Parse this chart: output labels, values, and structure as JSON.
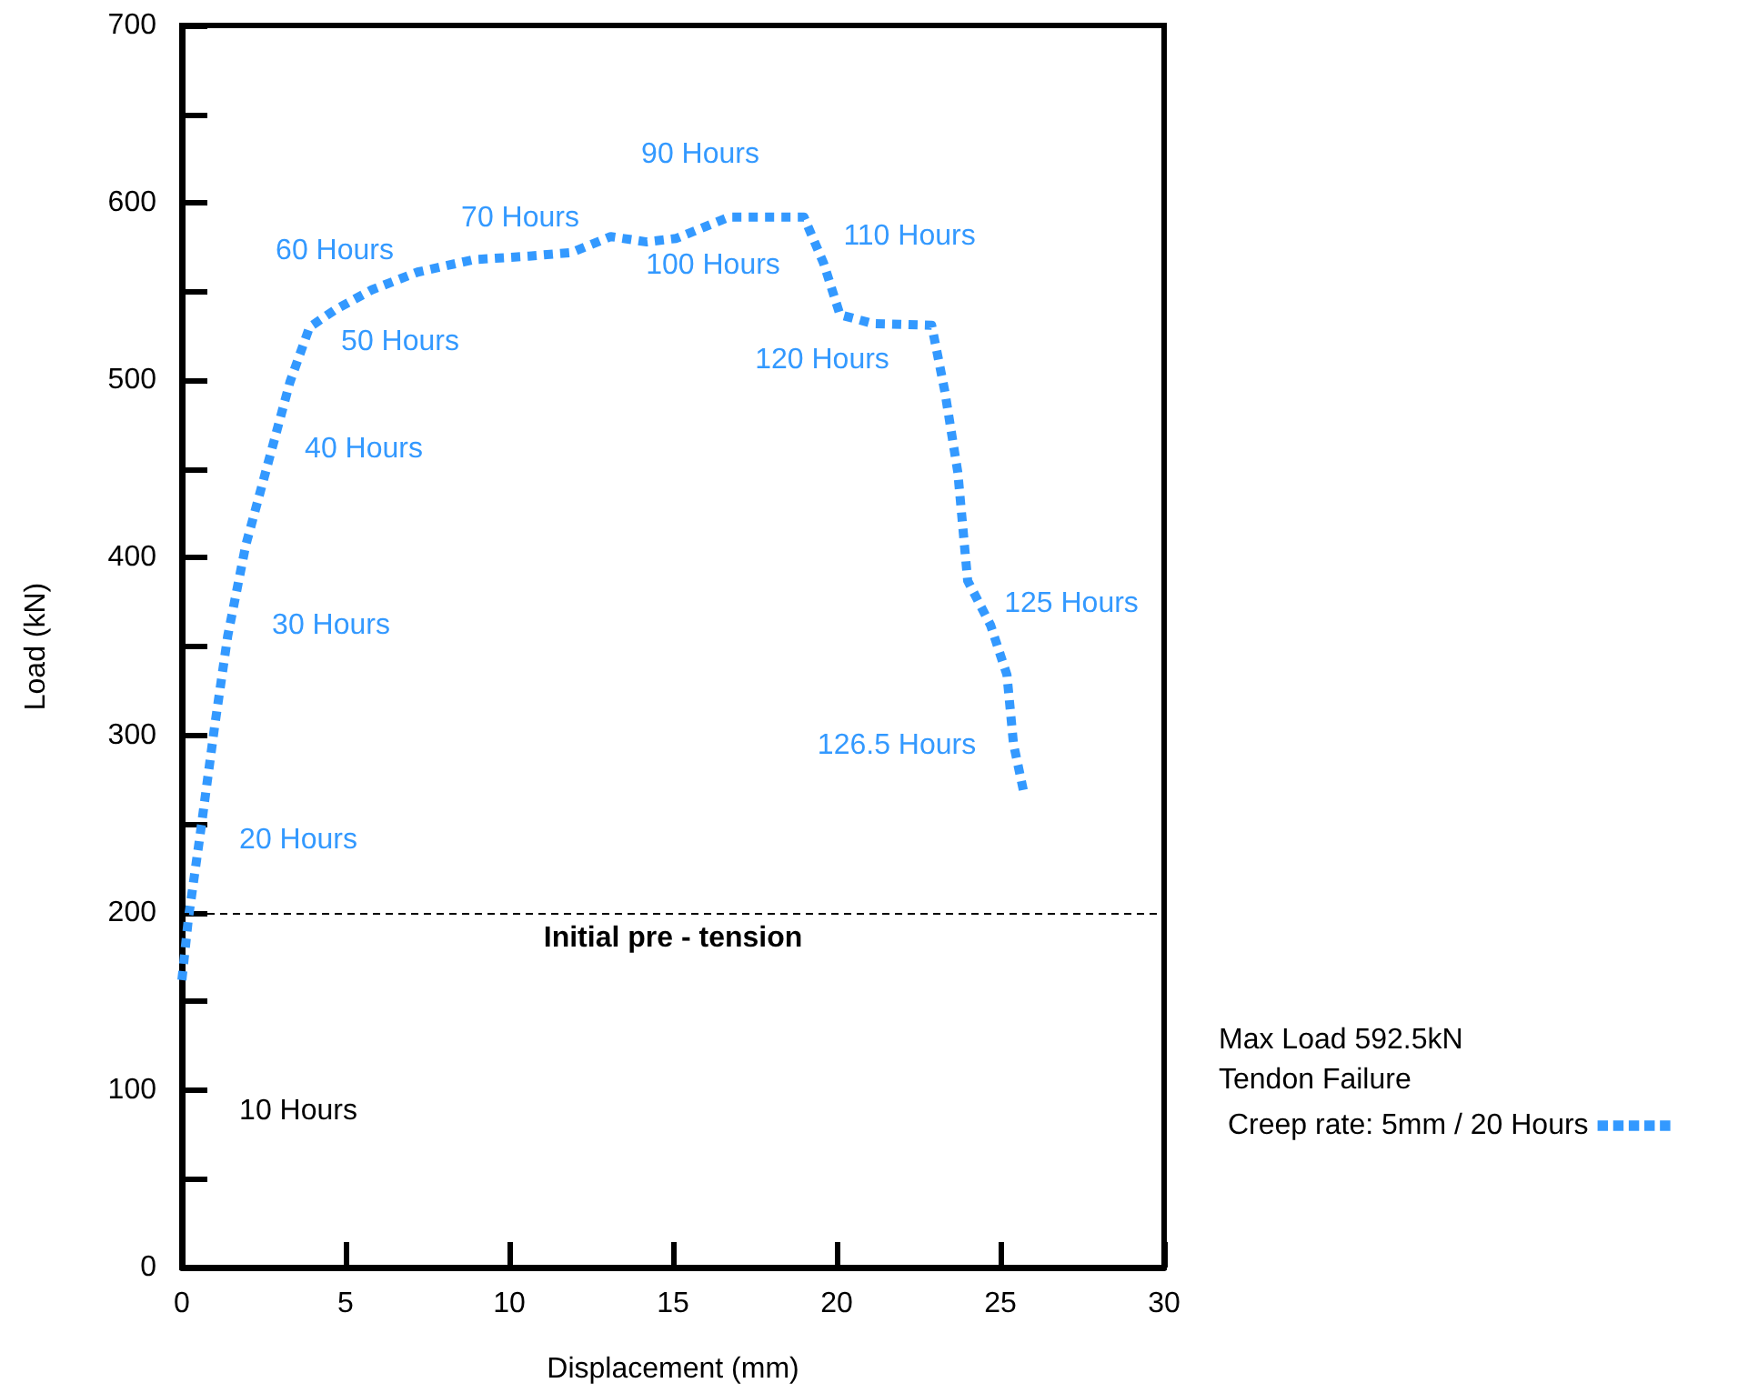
{
  "chart_data": {
    "type": "line",
    "xlabel": "Displacement (mm)",
    "ylabel": "Load (kN)",
    "x": [
      0,
      0.2,
      0.55,
      1.0,
      1.4,
      1.95,
      2.7,
      3.3,
      3.9,
      4.7,
      5.8,
      7.2,
      8.9,
      10.6,
      11.9,
      13.1,
      14.2,
      15.1,
      16.7,
      18.0,
      19.0,
      19.6,
      20.1,
      21.1,
      22.9,
      23.3,
      23.7,
      24.0,
      24.7,
      25.2,
      25.4,
      25.7
    ],
    "series": [
      {
        "name": "Creep rate: 5mm / 20 Hours",
        "color": "#3399ff",
        "values": [
          162,
          197,
          243,
          305,
          356,
          407,
          458,
          499,
          530,
          540,
          551,
          561,
          568,
          570,
          572,
          581,
          578,
          580,
          592,
          592,
          592,
          566,
          537,
          532,
          531,
          494,
          448,
          387,
          362,
          334,
          295,
          269
        ]
      }
    ],
    "line_style": "dotted",
    "marker": "none",
    "grid": false,
    "legend": "right",
    "xlim": [
      0,
      30
    ],
    "xticks": [
      0,
      5,
      10,
      15,
      20,
      25,
      30
    ],
    "ylim": [
      0,
      700
    ],
    "yticks": [
      0,
      {
        "value": 50,
        "label": null
      },
      100,
      {
        "value": 150,
        "label": null
      },
      200,
      {
        "value": 250,
        "label": null
      },
      300,
      {
        "value": 350,
        "label": null
      },
      400,
      {
        "value": 450,
        "label": null
      },
      500,
      {
        "value": 550,
        "label": null
      },
      600,
      {
        "value": 650,
        "label": null
      },
      700
    ],
    "ref_lines": [
      {
        "axis": "y",
        "value": 200,
        "label": "Initial pre - tension",
        "color": "#000000",
        "line_style": "dashed"
      }
    ],
    "annotations": [
      "10 Hours",
      "20 Hours",
      "30 Hours",
      "40 Hours",
      "50 Hours",
      "60 Hours",
      "70 Hours",
      "90 Hours",
      "100 Hours",
      "110 Hours",
      "120 Hours",
      "125 Hours",
      "126.5 Hours",
      "Max Load 592.5kN",
      "Tendon Failure"
    ]
  }
}
